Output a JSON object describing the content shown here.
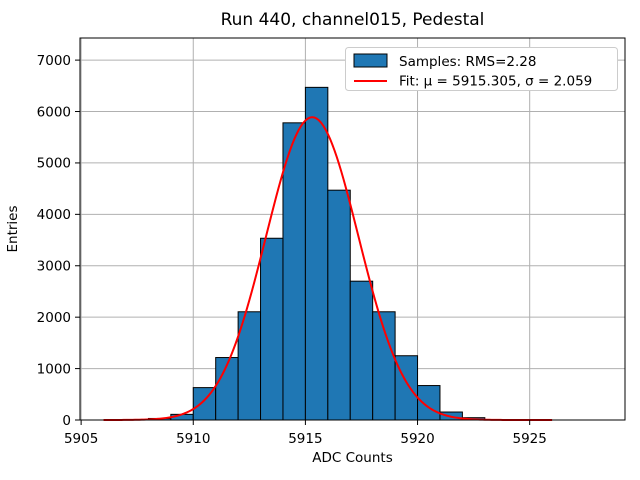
{
  "chart_data": {
    "type": "bar",
    "subtype": "histogram_with_gaussian_fit",
    "title": "Run 440, channel015, Pedestal",
    "xlabel": "ADC Counts",
    "ylabel": "Entries",
    "xlim": [
      5904.95,
      5929.25
    ],
    "ylim": [
      0,
      7430
    ],
    "xticks": [
      5905,
      5910,
      5915,
      5920,
      5925
    ],
    "yticks": [
      0,
      1000,
      2000,
      3000,
      4000,
      5000,
      6000,
      7000
    ],
    "grid": true,
    "bin_start": 5906,
    "bin_width": 1,
    "bin_counts": [
      0,
      10,
      30,
      110,
      630,
      1215,
      2105,
      3535,
      5780,
      6470,
      4470,
      2700,
      2105,
      1250,
      670,
      155,
      45,
      0,
      0,
      0
    ],
    "fit": {
      "mu": 5915.305,
      "sigma": 2.059,
      "peak": 5890,
      "x_range": [
        5906,
        5926
      ]
    },
    "legend": {
      "position": "upper right",
      "entries": [
        {
          "type": "patch",
          "label": "Samples: RMS=2.28",
          "color": "#1f77b4"
        },
        {
          "type": "line",
          "label": "Fit: μ = 5915.305, σ = 2.059",
          "color": "#ff0000"
        }
      ]
    },
    "colors": {
      "bar_fill": "#1f77b4",
      "bar_edge": "#000000",
      "fit_line": "#ff0000",
      "grid": "#b0b0b0",
      "spine": "#000000",
      "text": "#000000",
      "legend_border": "#cccccc",
      "background": "#ffffff"
    }
  }
}
